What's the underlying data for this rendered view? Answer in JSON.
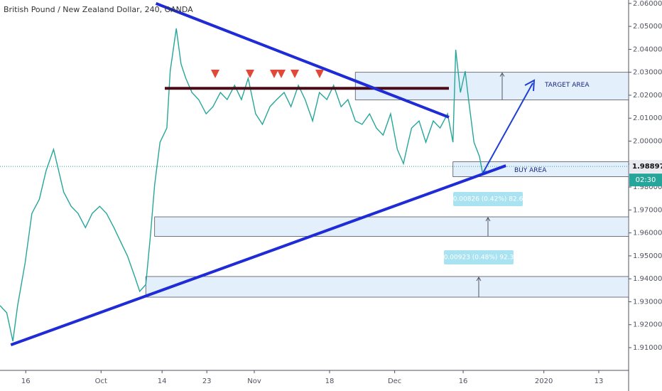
{
  "chart_data": {
    "type": "line",
    "title": "British Pound / New Zealand Dollar, 240, OANDA",
    "color": "#26a69a",
    "x": [
      0,
      1,
      1.9,
      2.6,
      3.7,
      4.7,
      5.8,
      6.8,
      7.9,
      8.4,
      9.4,
      10.5,
      11.5,
      12.6,
      13.6,
      14.7,
      15.7,
      16.8,
      17.8,
      18.8,
      19.9,
      20.6,
      21.5,
      22.2,
      22.8,
      23.6,
      24.6,
      25.1,
      26,
      26.7,
      27.4,
      28.3,
      29.3,
      30.4,
      31.4,
      32.5,
      33.5,
      34.6,
      35.6,
      36.6,
      37.7,
      38.7,
      39.8,
      40.8,
      41.9,
      42.9,
      44,
      45,
      46.1,
      47.1,
      48.2,
      49.2,
      50.3,
      51.3,
      52.4,
      53.4,
      54.5,
      55.5,
      56.5,
      57.6,
      58.6,
      59.5,
      60.2,
      60.7,
      61.8,
      62.8,
      63.9,
      64.9,
      66,
      66.8,
      67.2,
      67.9,
      68.6,
      69.1,
      69.9,
      70.7,
      71.2,
      71.7
    ],
    "values": [
      1.9283,
      1.9252,
      1.9128,
      1.9283,
      1.9468,
      1.9685,
      1.9747,
      1.9871,
      1.9964,
      1.9902,
      1.9778,
      1.9716,
      1.9685,
      1.9623,
      1.9685,
      1.9716,
      1.9685,
      1.9623,
      1.9561,
      1.9499,
      1.9407,
      1.9345,
      1.9375,
      1.9592,
      1.9809,
      1.9995,
      2.0057,
      2.0305,
      2.0491,
      2.0336,
      2.0274,
      2.0212,
      2.0181,
      2.0119,
      2.015,
      2.0212,
      2.0181,
      2.0243,
      2.0181,
      2.0274,
      2.0119,
      2.0073,
      2.015,
      2.0181,
      2.0212,
      2.015,
      2.0243,
      2.0181,
      2.0088,
      2.0212,
      2.0181,
      2.0243,
      2.015,
      2.0181,
      2.0088,
      2.0073,
      2.0119,
      2.0057,
      2.0026,
      2.0119,
      1.9964,
      1.9902,
      1.9995,
      2.0057,
      2.0088,
      1.9995,
      2.0088,
      2.0057,
      2.0119,
      1.9995,
      2.0398,
      2.0212,
      2.0305,
      2.0181,
      1.9995,
      1.9933,
      1.9856,
      1.9871
    ],
    "xlim": [
      0,
      92.7
    ],
    "xticks": [
      {
        "value": 3.8,
        "label": "16"
      },
      {
        "value": 14.9,
        "label": "Oct"
      },
      {
        "value": 23.9,
        "label": "14"
      },
      {
        "value": 30.5,
        "label": "23"
      },
      {
        "value": 37.5,
        "label": "Nov"
      },
      {
        "value": 48.6,
        "label": "18"
      },
      {
        "value": 58.2,
        "label": "Dec"
      },
      {
        "value": 68.3,
        "label": "16"
      },
      {
        "value": 80.2,
        "label": "2020"
      },
      {
        "value": 88.3,
        "label": "13"
      }
    ],
    "ylim": [
      1.9004,
      2.0615
    ],
    "yticks": [
      {
        "value": 1.91,
        "label": "1.91000"
      },
      {
        "value": 1.92,
        "label": "1.92000"
      },
      {
        "value": 1.93,
        "label": "1.93000"
      },
      {
        "value": 1.94,
        "label": "1.94000"
      },
      {
        "value": 1.95,
        "label": "1.95000"
      },
      {
        "value": 1.96,
        "label": "1.96000"
      },
      {
        "value": 1.97,
        "label": "1.97000"
      },
      {
        "value": 1.98,
        "label": "1.98000"
      },
      {
        "value": 1.99,
        "label": "1.99000"
      },
      {
        "value": 2.0,
        "label": "2.00000"
      },
      {
        "value": 2.01,
        "label": "2.01000"
      },
      {
        "value": 2.02,
        "label": "2.02000"
      },
      {
        "value": 2.03,
        "label": "2.03000"
      },
      {
        "value": 2.04,
        "label": "2.04000"
      },
      {
        "value": 2.05,
        "label": "2.05000"
      },
      {
        "value": 2.06,
        "label": "2.06000"
      }
    ],
    "last_price": {
      "value": 1.98897,
      "label": "1.98897"
    },
    "countdown": "02:30",
    "zones": [
      {
        "top": 2.03,
        "bottom": 2.018,
        "x0": 52.4,
        "x1": 92.7,
        "label": "TARGET AREA"
      },
      {
        "top": 1.991,
        "bottom": 1.9845,
        "x0": 66.8,
        "x1": 92.7,
        "label": "BUY AREA"
      },
      {
        "top": 1.967,
        "bottom": 1.9585,
        "x0": 22.8,
        "x1": 92.7
      },
      {
        "top": 1.941,
        "bottom": 1.932,
        "x0": 21.5,
        "x1": 92.7
      }
    ],
    "resistance": {
      "value": 2.023,
      "x0": 24.3,
      "x1": 66.2
    },
    "trendlines": [
      {
        "x0": 23,
        "y0": 2.06,
        "x1": 66.2,
        "y1": 2.0104
      },
      {
        "x0": 1.6,
        "y0": 1.9112,
        "x1": 74.6,
        "y1": 1.9893
      }
    ],
    "measures": [
      "0.00826 (0.42%) 82.6",
      "0.00923 (0.48%) 92.3"
    ]
  }
}
